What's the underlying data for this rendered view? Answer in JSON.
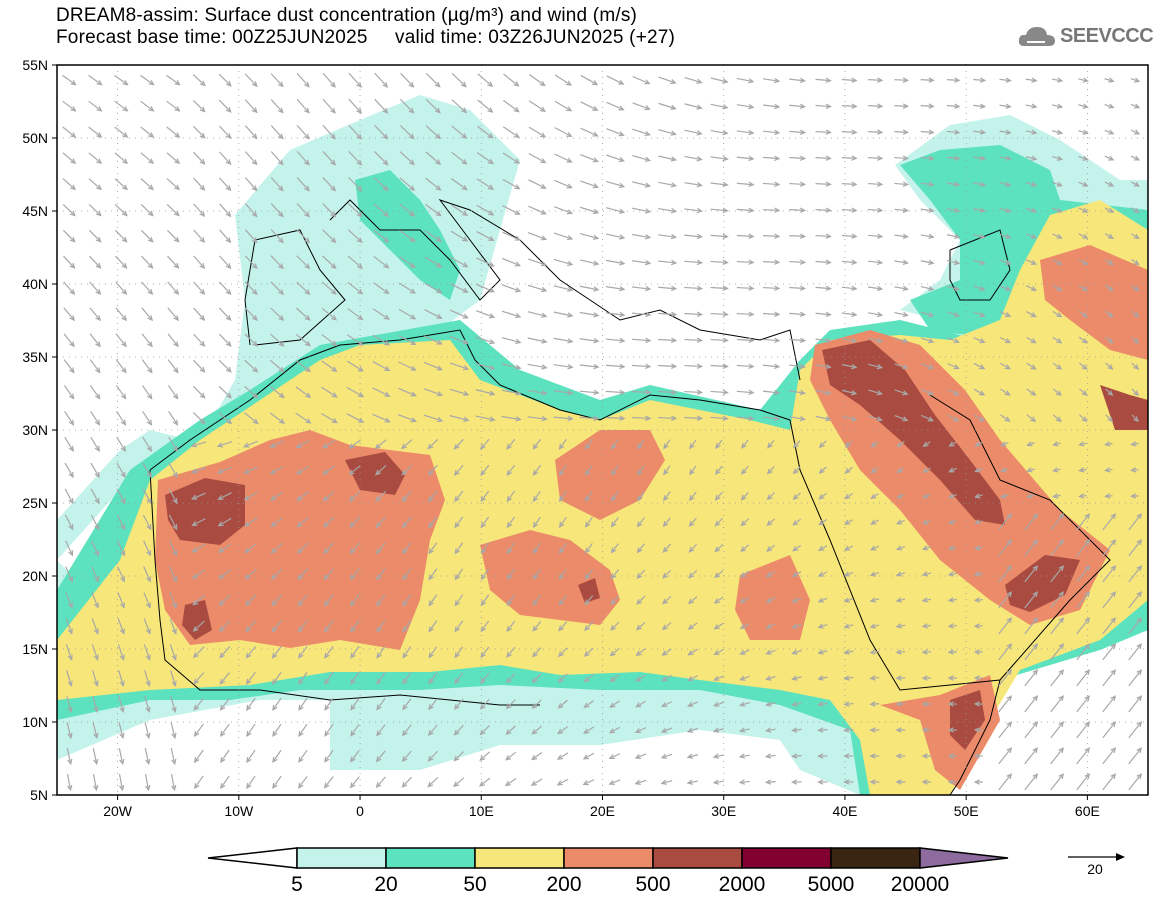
{
  "header": {
    "title": "DREAM8-assim: Surface dust concentration (µg/m³) and wind (m/s)",
    "subtitle": "Forecast base time: 00Z25JUN2025     valid time: 03Z26JUN2025 (+27)",
    "logo_text": "SEEVCCC"
  },
  "map": {
    "lon_range": [
      -25,
      65
    ],
    "lat_range": [
      5,
      55
    ],
    "lat_labels": [
      {
        "lat": 55,
        "label": "55N"
      },
      {
        "lat": 50,
        "label": "50N"
      },
      {
        "lat": 45,
        "label": "45N"
      },
      {
        "lat": 40,
        "label": "40N"
      },
      {
        "lat": 35,
        "label": "35N"
      },
      {
        "lat": 30,
        "label": "30N"
      },
      {
        "lat": 25,
        "label": "25N"
      },
      {
        "lat": 20,
        "label": "20N"
      },
      {
        "lat": 15,
        "label": "15N"
      },
      {
        "lat": 10,
        "label": "10N"
      },
      {
        "lat": 5,
        "label": "5N"
      }
    ],
    "lon_labels": [
      {
        "lon": -20,
        "label": "20W"
      },
      {
        "lon": -10,
        "label": "10W"
      },
      {
        "lon": 0,
        "label": "0"
      },
      {
        "lon": 10,
        "label": "10E"
      },
      {
        "lon": 20,
        "label": "20E"
      },
      {
        "lon": 30,
        "label": "30E"
      },
      {
        "lon": 40,
        "label": "40E"
      },
      {
        "lon": 50,
        "label": "50E"
      },
      {
        "lon": 60,
        "label": "60E"
      }
    ]
  },
  "legend": {
    "levels": [
      "5",
      "20",
      "50",
      "200",
      "500",
      "2000",
      "5000",
      "20000"
    ],
    "colors": [
      "#c4f3ec",
      "#5ce2be",
      "#f7e67a",
      "#ec8b6a",
      "#a94b40",
      "#820030",
      "#3a2412"
    ],
    "over_color": "#8e6b9e",
    "wind_ref_label": "20"
  }
}
